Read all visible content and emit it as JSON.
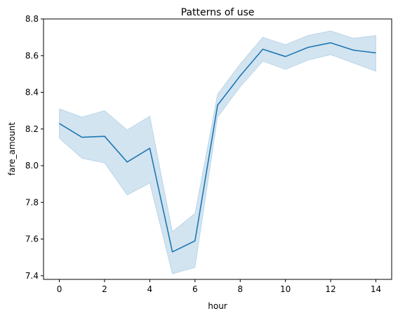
{
  "chart_data": {
    "type": "line",
    "title": "Patterns of use",
    "xlabel": "hour",
    "ylabel": "fare_amount",
    "xlim": [
      -0.7,
      14.7
    ],
    "ylim": [
      7.38,
      8.8
    ],
    "xticks": [
      0,
      2,
      4,
      6,
      8,
      10,
      12,
      14
    ],
    "xtick_labels": [
      "0",
      "2",
      "4",
      "6",
      "8",
      "10",
      "12",
      "14"
    ],
    "yticks": [
      7.4,
      7.6,
      7.8,
      8.0,
      8.2,
      8.4,
      8.6,
      8.8
    ],
    "ytick_labels": [
      "7.4",
      "7.6",
      "7.8",
      "8.0",
      "8.2",
      "8.4",
      "8.6",
      "8.8"
    ],
    "grid": false,
    "line_color": "#1f77b4",
    "band_color": "#1f77b4",
    "series": [
      {
        "x": [
          0,
          1,
          2,
          3,
          4,
          5,
          6,
          7,
          8,
          9,
          10,
          11,
          12,
          13,
          14
        ],
        "y": [
          8.23,
          8.155,
          8.16,
          8.02,
          8.095,
          7.53,
          7.59,
          8.33,
          8.49,
          8.635,
          8.595,
          8.645,
          8.67,
          8.63,
          8.615
        ],
        "lower": [
          8.15,
          8.04,
          8.015,
          7.84,
          7.905,
          7.41,
          7.445,
          8.265,
          8.43,
          8.57,
          8.525,
          8.575,
          8.605,
          8.56,
          8.515
        ],
        "upper": [
          8.31,
          8.265,
          8.3,
          8.195,
          8.27,
          7.64,
          7.74,
          8.39,
          8.555,
          8.7,
          8.66,
          8.71,
          8.735,
          8.695,
          8.71
        ]
      }
    ]
  }
}
